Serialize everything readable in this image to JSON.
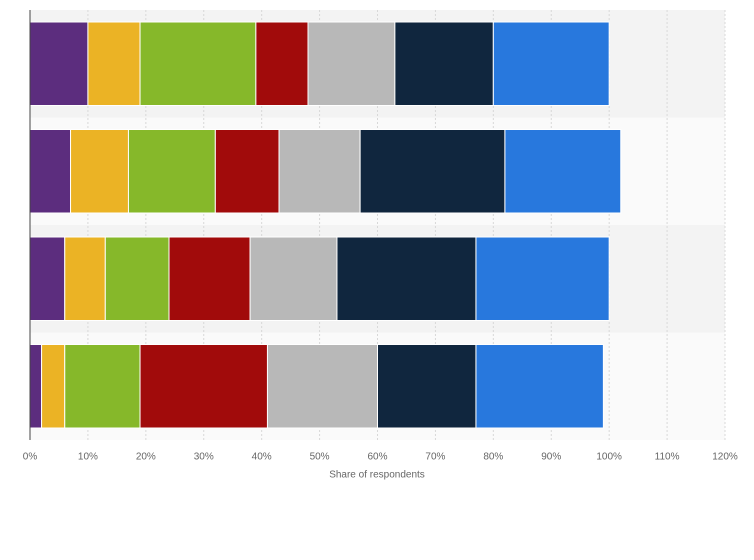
{
  "chart_data": {
    "type": "stacked-bar-horizontal",
    "x_label": "Share of respondents",
    "categories": [
      null,
      null,
      null,
      null
    ],
    "series": [
      {
        "color": "#5c2d7e",
        "values": [
          10,
          7,
          6,
          2
        ]
      },
      {
        "color": "#ebb325",
        "values": [
          9,
          10,
          7,
          4
        ]
      },
      {
        "color": "#86b82a",
        "values": [
          20,
          15,
          11,
          13
        ]
      },
      {
        "color": "#a10b0b",
        "values": [
          9,
          11,
          14,
          22
        ]
      },
      {
        "color": "#b8b8b8",
        "values": [
          15,
          14,
          15,
          19
        ]
      },
      {
        "color": "#10263e",
        "values": [
          17,
          25,
          24,
          17
        ]
      },
      {
        "color": "#2878dd",
        "values": [
          20,
          20,
          23,
          22
        ]
      }
    ],
    "xlim": [
      0,
      120
    ],
    "xticks": [
      {
        "value": 0,
        "label": "0%"
      },
      {
        "value": 10,
        "label": "10%"
      },
      {
        "value": 20,
        "label": "20%"
      },
      {
        "value": 30,
        "label": "30%"
      },
      {
        "value": 40,
        "label": "40%"
      },
      {
        "value": 50,
        "label": "50%"
      },
      {
        "value": 60,
        "label": "60%"
      },
      {
        "value": 70,
        "label": "70%"
      },
      {
        "value": 80,
        "label": "80%"
      },
      {
        "value": 90,
        "label": "90%"
      },
      {
        "value": 100,
        "label": "100%"
      },
      {
        "value": 110,
        "label": "110%"
      },
      {
        "value": 120,
        "label": "120%"
      }
    ],
    "grid": true
  }
}
